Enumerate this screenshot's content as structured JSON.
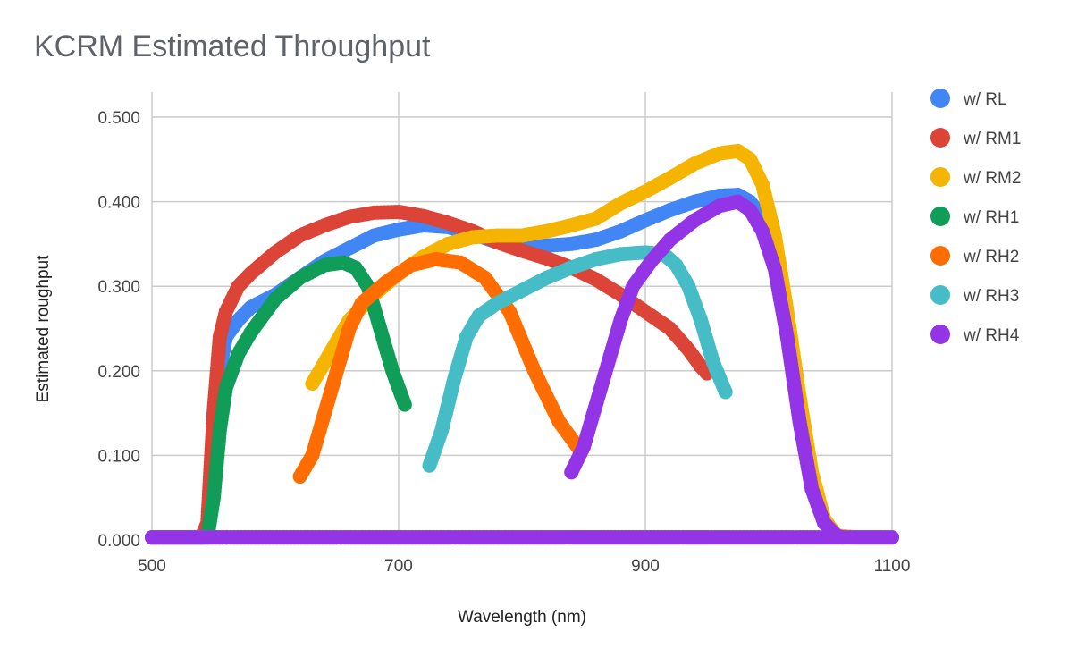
{
  "chart_data": {
    "type": "scatter",
    "title": "KCRM Estimated Throughput",
    "xlabel": "Wavelength (nm)",
    "ylabel": "Estimated roughput",
    "xlim": [
      500,
      1100
    ],
    "ylim": [
      0,
      0.5
    ],
    "x_ticks": [
      500,
      700,
      900,
      1100
    ],
    "x_tick_labels": [
      "500",
      "700",
      "900",
      "1100"
    ],
    "y_ticks": [
      0,
      0.1,
      0.2,
      0.3,
      0.4,
      0.5
    ],
    "y_tick_labels": [
      "0.000",
      "0.100",
      "0.200",
      "0.300",
      "0.400",
      "0.500"
    ],
    "grid": true,
    "legend_position": "right",
    "series": [
      {
        "name": "w/ RL",
        "color": "#4285f4",
        "points": [
          [
            500,
            0.003
          ],
          [
            540,
            0.003
          ],
          [
            545,
            0.01
          ],
          [
            550,
            0.1
          ],
          [
            555,
            0.2
          ],
          [
            560,
            0.24
          ],
          [
            570,
            0.26
          ],
          [
            580,
            0.275
          ],
          [
            600,
            0.29
          ],
          [
            620,
            0.31
          ],
          [
            640,
            0.33
          ],
          [
            660,
            0.345
          ],
          [
            680,
            0.36
          ],
          [
            700,
            0.367
          ],
          [
            720,
            0.372
          ],
          [
            740,
            0.37
          ],
          [
            760,
            0.362
          ],
          [
            780,
            0.352
          ],
          [
            800,
            0.347
          ],
          [
            820,
            0.348
          ],
          [
            840,
            0.35
          ],
          [
            860,
            0.355
          ],
          [
            880,
            0.365
          ],
          [
            900,
            0.378
          ],
          [
            920,
            0.39
          ],
          [
            940,
            0.4
          ],
          [
            960,
            0.407
          ],
          [
            975,
            0.408
          ],
          [
            985,
            0.4
          ],
          [
            995,
            0.38
          ],
          [
            1005,
            0.33
          ],
          [
            1015,
            0.25
          ],
          [
            1025,
            0.15
          ],
          [
            1035,
            0.07
          ],
          [
            1045,
            0.02
          ],
          [
            1055,
            0.005
          ],
          [
            1070,
            0.003
          ],
          [
            1100,
            0.003
          ]
        ]
      },
      {
        "name": "w/ RM1",
        "color": "#db4437",
        "points": [
          [
            500,
            0.003
          ],
          [
            540,
            0.003
          ],
          [
            545,
            0.02
          ],
          [
            550,
            0.15
          ],
          [
            555,
            0.24
          ],
          [
            560,
            0.27
          ],
          [
            570,
            0.3
          ],
          [
            580,
            0.315
          ],
          [
            600,
            0.34
          ],
          [
            620,
            0.36
          ],
          [
            640,
            0.372
          ],
          [
            660,
            0.382
          ],
          [
            680,
            0.387
          ],
          [
            700,
            0.388
          ],
          [
            720,
            0.383
          ],
          [
            740,
            0.375
          ],
          [
            760,
            0.365
          ],
          [
            780,
            0.352
          ],
          [
            800,
            0.342
          ],
          [
            820,
            0.333
          ],
          [
            840,
            0.322
          ],
          [
            860,
            0.308
          ],
          [
            880,
            0.29
          ],
          [
            900,
            0.27
          ],
          [
            920,
            0.25
          ],
          [
            935,
            0.225
          ],
          [
            945,
            0.205
          ],
          [
            950,
            0.197
          ]
        ]
      },
      {
        "name": "w/ RM2",
        "color": "#f4b400",
        "points": [
          [
            630,
            0.185
          ],
          [
            640,
            0.21
          ],
          [
            660,
            0.26
          ],
          [
            680,
            0.29
          ],
          [
            700,
            0.315
          ],
          [
            720,
            0.335
          ],
          [
            740,
            0.35
          ],
          [
            760,
            0.358
          ],
          [
            780,
            0.36
          ],
          [
            800,
            0.36
          ],
          [
            820,
            0.365
          ],
          [
            840,
            0.372
          ],
          [
            860,
            0.38
          ],
          [
            880,
            0.398
          ],
          [
            900,
            0.412
          ],
          [
            920,
            0.428
          ],
          [
            940,
            0.445
          ],
          [
            960,
            0.457
          ],
          [
            975,
            0.46
          ],
          [
            985,
            0.45
          ],
          [
            995,
            0.42
          ],
          [
            1005,
            0.36
          ],
          [
            1015,
            0.27
          ],
          [
            1025,
            0.17
          ],
          [
            1035,
            0.08
          ],
          [
            1045,
            0.025
          ],
          [
            1055,
            0.005
          ],
          [
            1070,
            0.003
          ],
          [
            1100,
            0.003
          ]
        ]
      },
      {
        "name": "w/ RH1",
        "color": "#0f9d58",
        "points": [
          [
            500,
            0.003
          ],
          [
            545,
            0.003
          ],
          [
            550,
            0.05
          ],
          [
            555,
            0.13
          ],
          [
            560,
            0.18
          ],
          [
            570,
            0.22
          ],
          [
            580,
            0.245
          ],
          [
            600,
            0.285
          ],
          [
            620,
            0.31
          ],
          [
            640,
            0.325
          ],
          [
            655,
            0.328
          ],
          [
            665,
            0.322
          ],
          [
            675,
            0.3
          ],
          [
            685,
            0.25
          ],
          [
            695,
            0.2
          ],
          [
            705,
            0.16
          ]
        ]
      },
      {
        "name": "w/ RH2",
        "color": "#ff6d00",
        "points": [
          [
            500,
            0.003
          ],
          [
            850,
            0.003
          ],
          [
            950,
            0.003
          ],
          [
            620,
            0.075
          ],
          [
            630,
            0.1
          ],
          [
            640,
            0.15
          ],
          [
            650,
            0.2
          ],
          [
            660,
            0.25
          ],
          [
            670,
            0.28
          ],
          [
            690,
            0.305
          ],
          [
            710,
            0.325
          ],
          [
            730,
            0.332
          ],
          [
            750,
            0.328
          ],
          [
            770,
            0.31
          ],
          [
            790,
            0.27
          ],
          [
            810,
            0.2
          ],
          [
            830,
            0.14
          ],
          [
            845,
            0.11
          ]
        ]
      },
      {
        "name": "w/ RH3",
        "color": "#46bdc6",
        "points": [
          [
            500,
            0.003
          ],
          [
            960,
            0.003
          ],
          [
            1060,
            0.003
          ],
          [
            725,
            0.088
          ],
          [
            735,
            0.13
          ],
          [
            745,
            0.19
          ],
          [
            755,
            0.24
          ],
          [
            765,
            0.265
          ],
          [
            780,
            0.28
          ],
          [
            800,
            0.295
          ],
          [
            820,
            0.31
          ],
          [
            840,
            0.322
          ],
          [
            860,
            0.332
          ],
          [
            880,
            0.338
          ],
          [
            900,
            0.34
          ],
          [
            915,
            0.338
          ],
          [
            925,
            0.325
          ],
          [
            935,
            0.3
          ],
          [
            945,
            0.26
          ],
          [
            955,
            0.21
          ],
          [
            965,
            0.175
          ]
        ]
      },
      {
        "name": "w/ RH4",
        "color": "#9334e6",
        "points": [
          [
            500,
            0.003
          ],
          [
            1060,
            0.003
          ],
          [
            1100,
            0.003
          ],
          [
            840,
            0.08
          ],
          [
            850,
            0.11
          ],
          [
            860,
            0.16
          ],
          [
            870,
            0.21
          ],
          [
            880,
            0.26
          ],
          [
            890,
            0.3
          ],
          [
            905,
            0.33
          ],
          [
            920,
            0.355
          ],
          [
            940,
            0.378
          ],
          [
            960,
            0.395
          ],
          [
            975,
            0.4
          ],
          [
            985,
            0.39
          ],
          [
            995,
            0.365
          ],
          [
            1005,
            0.32
          ],
          [
            1015,
            0.24
          ],
          [
            1025,
            0.14
          ],
          [
            1035,
            0.06
          ],
          [
            1045,
            0.02
          ],
          [
            1055,
            0.005
          ],
          [
            1060,
            0.003
          ]
        ]
      }
    ]
  }
}
